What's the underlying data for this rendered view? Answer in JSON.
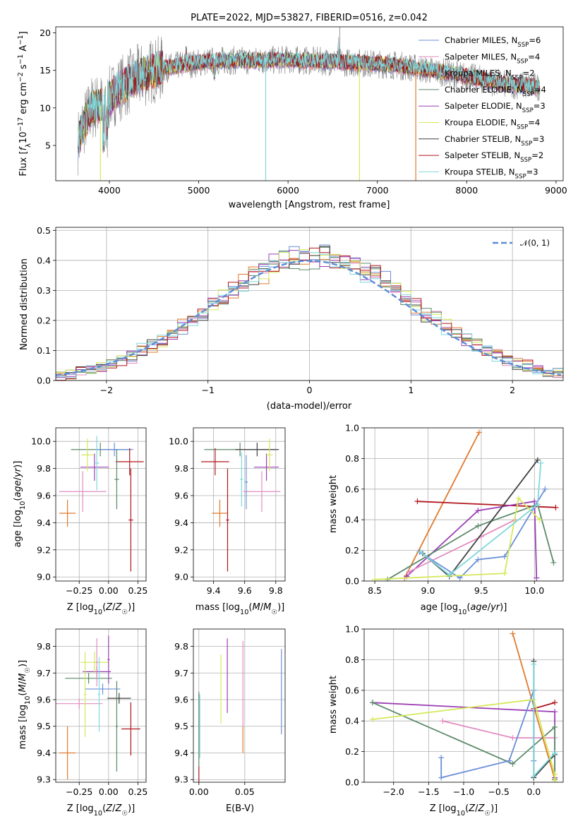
{
  "chart_data": [
    {
      "panel": "spectrum",
      "type": "line",
      "title": "PLATE=2022, MJD=53827, FIBERID=0516, z=0.042",
      "xlabel": "wavelength [Angstrom, rest frame]",
      "ylabel": "Flux [f_λ10^-17 erg cm^-2 s^-1 A^-1]",
      "xlim": [
        3400,
        9080
      ],
      "ylim": [
        0.3,
        20.8
      ],
      "xticks": [
        4000,
        5000,
        6000,
        7000,
        8000,
        9000
      ],
      "yticks": [
        5,
        10,
        15,
        20
      ],
      "continuum": [
        [
          3650,
          5.5
        ],
        [
          3700,
          7.5
        ],
        [
          3800,
          10.0
        ],
        [
          3950,
          10.5
        ],
        [
          4100,
          12.5
        ],
        [
          4300,
          14.0
        ],
        [
          4500,
          15.0
        ],
        [
          4800,
          15.7
        ],
        [
          5200,
          16.3
        ],
        [
          5600,
          16.3
        ],
        [
          6000,
          16.4
        ],
        [
          6400,
          16.2
        ],
        [
          6800,
          16.0
        ],
        [
          7200,
          15.7
        ],
        [
          7600,
          15.0
        ],
        [
          8000,
          14.2
        ],
        [
          8400,
          13.2
        ],
        [
          8800,
          12.8
        ]
      ],
      "legend": [
        {
          "label": "Chabrier MILES, N_SSP=6",
          "color": "#6a8fd8"
        },
        {
          "label": "Salpeter MILES, N_SSP=4",
          "color": "#e38cc0"
        },
        {
          "label": "Kroupa MILES, N_SSP=2",
          "color": "#e07a2e"
        },
        {
          "label": "Chabrier ELODIE, N_SSP=4",
          "color": "#5b8a6a"
        },
        {
          "label": "Salpeter ELODIE, N_SSP=3",
          "color": "#9b3fb5"
        },
        {
          "label": "Kroupa ELODIE, N_SSP=4",
          "color": "#d6e85a"
        },
        {
          "label": "Chabrier STELIB, N_SSP=3",
          "color": "#404040"
        },
        {
          "label": "Salpeter STELIB, N_SSP=2",
          "color": "#b0161e"
        },
        {
          "label": "Kroupa STELIB, N_SSP=3",
          "color": "#7fd8dc"
        }
      ]
    },
    {
      "panel": "residuals",
      "type": "line",
      "xlabel": "(data-model)/error",
      "ylabel": "Normed distribution",
      "xlim": [
        -2.5,
        2.5
      ],
      "ylim": [
        0,
        0.51
      ],
      "xticks": [
        -2,
        -1,
        0,
        1,
        2
      ],
      "yticks": [
        0.0,
        0.1,
        0.2,
        0.3,
        0.4,
        0.5
      ],
      "reference_label": "𝒩(0, 1)",
      "reference_color": "#5b8bd6",
      "bin_width": 0.1,
      "sigma": 1.0
    },
    {
      "panel": "age_vs_Z",
      "type": "scatter",
      "xlabel": "Z [log₁₀(Z/Z☉)]",
      "ylabel": "age  [log₁₀(age/yr)]",
      "xlim": [
        -0.45,
        0.32
      ],
      "ylim": [
        8.97,
        10.1
      ],
      "xticks": [
        -0.25,
        0.0,
        0.25
      ],
      "yticks": [
        9.0,
        9.2,
        9.4,
        9.6,
        9.8,
        10.0
      ],
      "points": [
        {
          "x": -0.07,
          "xerr": 0.25,
          "y": 9.94,
          "yerr": 0.05,
          "color": "#5b8a6a"
        },
        {
          "x": 0.05,
          "xerr": 0.16,
          "y": 9.94,
          "yerr": 0.05,
          "color": "#6a8fd8"
        },
        {
          "x": 0.18,
          "xerr": 0.12,
          "y": 9.85,
          "yerr": 0.1,
          "color": "#b0161e"
        },
        {
          "x": -0.12,
          "xerr": 0.12,
          "y": 9.81,
          "yerr": 0.1,
          "color": "#9b3fb5"
        },
        {
          "x": -0.22,
          "xerr": 0.2,
          "y": 9.63,
          "yerr": 0.15,
          "color": "#e38cc0"
        },
        {
          "x": -0.35,
          "xerr": 0.07,
          "y": 9.47,
          "yerr": 0.1,
          "color": "#e07a2e"
        },
        {
          "x": -0.18,
          "xerr": 0.05,
          "y": 9.9,
          "yerr": 0.12,
          "color": "#d6e85a"
        },
        {
          "x": 0.19,
          "xerr": 0.02,
          "y": 9.42,
          "yerr": 0.38,
          "color": "#b0161e"
        },
        {
          "x": 0.07,
          "xerr": 0.02,
          "y": 9.72,
          "yerr": 0.22,
          "color": "#5b8a6a"
        },
        {
          "x": -0.1,
          "xerr": 0.02,
          "y": 9.84,
          "yerr": 0.2,
          "color": "#7fd8dc"
        }
      ]
    },
    {
      "panel": "age_vs_mass",
      "type": "scatter",
      "xlabel": "mass [log₁₀(M/M☉)]",
      "ylabel": "",
      "xlim": [
        9.27,
        9.86
      ],
      "ylim": [
        8.97,
        10.1
      ],
      "xticks": [
        9.4,
        9.6,
        9.8
      ],
      "yticks": [
        9.0,
        9.2,
        9.4,
        9.6,
        9.8,
        10.0
      ],
      "points": [
        {
          "x": 9.57,
          "xerr": 0.23,
          "y": 9.94,
          "yerr": 0.05,
          "color": "#5b8a6a"
        },
        {
          "x": 9.68,
          "xerr": 0.14,
          "y": 9.94,
          "yerr": 0.05,
          "color": "#404040"
        },
        {
          "x": 9.41,
          "xerr": 0.09,
          "y": 9.85,
          "yerr": 0.1,
          "color": "#b0161e"
        },
        {
          "x": 9.74,
          "xerr": 0.08,
          "y": 9.81,
          "yerr": 0.1,
          "color": "#9b3fb5"
        },
        {
          "x": 9.71,
          "xerr": 0.12,
          "y": 9.63,
          "yerr": 0.15,
          "color": "#e38cc0"
        },
        {
          "x": 9.44,
          "xerr": 0.05,
          "y": 9.47,
          "yerr": 0.1,
          "color": "#e07a2e"
        },
        {
          "x": 9.76,
          "xerr": 0.02,
          "y": 9.9,
          "yerr": 0.12,
          "color": "#d6e85a"
        },
        {
          "x": 9.49,
          "xerr": 0.01,
          "y": 9.42,
          "yerr": 0.38,
          "color": "#b0161e"
        },
        {
          "x": 9.61,
          "xerr": 0.01,
          "y": 9.7,
          "yerr": 0.2,
          "color": "#6a8fd8"
        },
        {
          "x": 9.58,
          "xerr": 0.01,
          "y": 9.72,
          "yerr": 0.2,
          "color": "#7fd8dc"
        }
      ]
    },
    {
      "panel": "mass_weight_vs_age",
      "type": "line",
      "xlabel": "age  [log₁₀(age/yr)]",
      "ylabel": "mass weight",
      "xlim": [
        8.4,
        10.27
      ],
      "ylim": [
        0,
        1.0
      ],
      "xticks": [
        8.5,
        9.0,
        9.5,
        10.0
      ],
      "yticks": [
        0.0,
        0.2,
        0.4,
        0.6,
        0.8,
        1.0
      ],
      "series": [
        {
          "color": "#e07a2e",
          "x": [
            8.78,
            9.48
          ],
          "y": [
            0.02,
            0.97
          ]
        },
        {
          "color": "#b0161e",
          "x": [
            8.9,
            10.2
          ],
          "y": [
            0.52,
            0.48
          ]
        },
        {
          "color": "#9b3fb5",
          "x": [
            8.8,
            9.47,
            10.0,
            10.02
          ],
          "y": [
            0.03,
            0.46,
            0.52,
            0.02
          ]
        },
        {
          "color": "#e38cc0",
          "x": [
            8.82,
            9.5,
            9.82
          ],
          "y": [
            0.06,
            0.29,
            0.4
          ]
        },
        {
          "color": "#5b8a6a",
          "x": [
            8.62,
            9.47,
            10.03,
            10.18
          ],
          "y": [
            0.01,
            0.36,
            0.5,
            0.12
          ]
        },
        {
          "color": "#404040",
          "x": [
            8.95,
            9.2,
            10.03
          ],
          "y": [
            0.18,
            0.03,
            0.79
          ]
        },
        {
          "color": "#6a8fd8",
          "x": [
            8.92,
            9.3,
            9.47,
            9.72,
            10.1
          ],
          "y": [
            0.19,
            0.02,
            0.14,
            0.16,
            0.6
          ]
        },
        {
          "color": "#d6e85a",
          "x": [
            8.5,
            9.72,
            9.85,
            10.05
          ],
          "y": [
            0.01,
            0.05,
            0.54,
            0.4
          ]
        },
        {
          "color": "#7fd8dc",
          "x": [
            8.93,
            9.2,
            10.03,
            10.06
          ],
          "y": [
            0.19,
            0.04,
            0.5,
            0.77
          ]
        }
      ]
    },
    {
      "panel": "mass_vs_Z",
      "type": "scatter",
      "xlabel": "Z [log₁₀(Z/Z☉)]",
      "ylabel": "mass [log₁₀(M/M☉)]",
      "xlim": [
        -0.45,
        0.32
      ],
      "ylim": [
        9.29,
        9.865
      ],
      "xticks": [
        -0.25,
        0.0,
        0.25
      ],
      "yticks": [
        9.3,
        9.4,
        9.5,
        9.6,
        9.7,
        9.8
      ],
      "points": [
        {
          "x": -0.1,
          "xerr": 0.12,
          "y": 9.705,
          "yerr": 0.02,
          "color": "#9b3fb5"
        },
        {
          "x": -0.12,
          "xerr": 0.12,
          "y": 9.74,
          "yerr": 0.04,
          "color": "#d6e85a"
        },
        {
          "x": -0.17,
          "xerr": 0.2,
          "y": 9.68,
          "yerr": 0.02,
          "color": "#5b8a6a"
        },
        {
          "x": -0.05,
          "xerr": 0.15,
          "y": 9.64,
          "yerr": 0.02,
          "color": "#6a8fd8"
        },
        {
          "x": -0.25,
          "xerr": 0.2,
          "y": 9.585,
          "yerr": 0.02,
          "color": "#e38cc0"
        },
        {
          "x": 0.09,
          "xerr": 0.1,
          "y": 9.605,
          "yerr": 0.02,
          "color": "#404040"
        },
        {
          "x": 0.19,
          "xerr": 0.08,
          "y": 9.49,
          "yerr": 0.1,
          "color": "#b0161e"
        },
        {
          "x": -0.35,
          "xerr": 0.07,
          "y": 9.4,
          "yerr": 0.1,
          "color": "#e07a2e"
        },
        {
          "x": 0.07,
          "xerr": 0.01,
          "y": 9.5,
          "yerr": 0.17,
          "color": "#5b8a6a"
        },
        {
          "x": -0.1,
          "xerr": 0.01,
          "y": 9.74,
          "yerr": 0.09,
          "color": "#e38cc0"
        },
        {
          "x": 0.0,
          "xerr": 0.01,
          "y": 9.75,
          "yerr": 0.09,
          "color": "#9b3fb5"
        },
        {
          "x": -0.2,
          "xerr": 0.01,
          "y": 9.62,
          "yerr": 0.16,
          "color": "#d6e85a"
        },
        {
          "x": -0.08,
          "xerr": 0.01,
          "y": 9.62,
          "yerr": 0.14,
          "color": "#7fd8dc"
        }
      ]
    },
    {
      "panel": "mass_vs_EBV",
      "type": "scatter",
      "xlabel": "E(B-V)",
      "ylabel": "",
      "xlim": [
        -0.006,
        0.094
      ],
      "ylim": [
        9.29,
        9.865
      ],
      "xticks": [
        0.0,
        0.05
      ],
      "yticks": [
        9.3,
        9.4,
        9.5,
        9.6,
        9.7,
        9.8
      ],
      "points": [
        {
          "x": 0.0,
          "y": 9.49,
          "yerr": 0.14,
          "color": "#5b8a6a"
        },
        {
          "x": 0.0,
          "y": 9.32,
          "yerr": 0.03,
          "color": "#b0161e"
        },
        {
          "x": 0.001,
          "y": 9.5,
          "yerr": 0.12,
          "color": "#7fd8dc"
        },
        {
          "x": 0.024,
          "y": 9.64,
          "yerr": 0.13,
          "color": "#d6e85a"
        },
        {
          "x": 0.031,
          "y": 9.69,
          "yerr": 0.14,
          "color": "#9b3fb5"
        },
        {
          "x": 0.048,
          "y": 9.45,
          "yerr": 0.05,
          "color": "#e07a2e"
        },
        {
          "x": 0.048,
          "y": 9.66,
          "yerr": 0.16,
          "color": "#e38cc0"
        },
        {
          "x": 0.09,
          "y": 9.63,
          "yerr": 0.16,
          "color": "#6a8fd8"
        }
      ]
    },
    {
      "panel": "mass_weight_vs_Z",
      "type": "line",
      "xlabel": "Z [log₁₀(Z/Z☉)]",
      "ylabel": "mass weight",
      "xlim": [
        -2.42,
        0.42
      ],
      "ylim": [
        0,
        1.0
      ],
      "xticks": [
        -2.0,
        -1.5,
        -1.0,
        -0.5,
        0.0
      ],
      "yticks": [
        0.0,
        0.2,
        0.4,
        0.6,
        0.8,
        1.0
      ],
      "series": [
        {
          "color": "#e07a2e",
          "x": [
            -0.3,
            0.3
          ],
          "y": [
            0.97,
            0.02
          ]
        },
        {
          "color": "#b0161e",
          "x": [
            0.0,
            0.3
          ],
          "y": [
            0.48,
            0.52
          ]
        },
        {
          "color": "#9b3fb5",
          "x": [
            -2.3,
            0.3,
            0.3
          ],
          "y": [
            0.52,
            0.46,
            0.03
          ]
        },
        {
          "color": "#e38cc0",
          "x": [
            -1.3,
            -0.3,
            0.3
          ],
          "y": [
            0.4,
            0.29,
            0.29
          ]
        },
        {
          "color": "#5b8a6a",
          "x": [
            -2.3,
            -0.3,
            0.3,
            0.3
          ],
          "y": [
            0.52,
            0.12,
            0.36,
            0.02
          ]
        },
        {
          "color": "#404040",
          "x": [
            0.0,
            0.0,
            0.3
          ],
          "y": [
            0.79,
            0.03,
            0.18
          ]
        },
        {
          "color": "#6a8fd8",
          "x": [
            -1.32,
            -1.32,
            -0.35,
            0.0,
            0.0
          ],
          "y": [
            0.16,
            0.03,
            0.14,
            0.6,
            0.14
          ]
        },
        {
          "color": "#d6e85a",
          "x": [
            -2.3,
            0.0,
            0.3,
            0.3
          ],
          "y": [
            0.41,
            0.54,
            0.05,
            0.01
          ]
        },
        {
          "color": "#7fd8dc",
          "x": [
            0.0,
            0.0,
            0.3
          ],
          "y": [
            0.77,
            0.04,
            0.19
          ]
        }
      ]
    }
  ]
}
